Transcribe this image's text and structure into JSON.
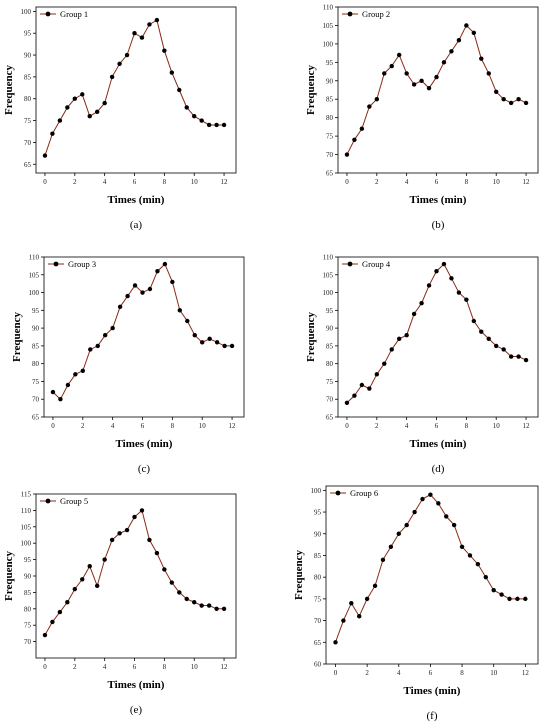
{
  "chart_data": [
    {
      "type": "line",
      "caption": "(a)",
      "xlabel": "Times  (min)",
      "ylabel": "Frequency",
      "xlim": [
        -0.6,
        12.8
      ],
      "ylim": [
        63,
        101
      ],
      "xticks": [
        0,
        2,
        4,
        6,
        8,
        10,
        12
      ],
      "yticks": [
        65,
        70,
        75,
        80,
        85,
        90,
        95,
        100
      ],
      "legend_position": "top-left",
      "series": [
        {
          "name": "Group 1",
          "x": [
            0,
            0.5,
            1,
            1.5,
            2,
            2.5,
            3,
            3.5,
            4,
            4.5,
            5,
            5.5,
            6,
            6.5,
            7,
            7.5,
            8,
            8.5,
            9,
            9.5,
            10,
            10.5,
            11,
            11.5,
            12
          ],
          "y": [
            67,
            72,
            75,
            78,
            80,
            81,
            76,
            77,
            79,
            85,
            88,
            90,
            95,
            94,
            97,
            98,
            91,
            86,
            82,
            78,
            76,
            75,
            74,
            74,
            74
          ]
        }
      ]
    },
    {
      "type": "line",
      "caption": "(b)",
      "xlabel": "Times  (min)",
      "ylabel": "Frequency",
      "xlim": [
        -0.6,
        12.8
      ],
      "ylim": [
        65,
        110
      ],
      "xticks": [
        0,
        2,
        4,
        6,
        8,
        10,
        12
      ],
      "yticks": [
        65,
        70,
        75,
        80,
        85,
        90,
        95,
        100,
        105,
        110
      ],
      "legend_position": "top-left",
      "series": [
        {
          "name": "Group 2",
          "x": [
            0,
            0.5,
            1,
            1.5,
            2,
            2.5,
            3,
            3.5,
            4,
            4.5,
            5,
            5.5,
            6,
            6.5,
            7,
            7.5,
            8,
            8.5,
            9,
            9.5,
            10,
            10.5,
            11,
            11.5,
            12
          ],
          "y": [
            70,
            74,
            77,
            83,
            85,
            92,
            94,
            97,
            92,
            89,
            90,
            88,
            91,
            95,
            98,
            101,
            105,
            103,
            96,
            92,
            87,
            85,
            84,
            85,
            84
          ]
        }
      ]
    },
    {
      "type": "line",
      "caption": "(c)",
      "xlabel": "Times  (min)",
      "ylabel": "Frequency",
      "xlim": [
        -0.6,
        12.8
      ],
      "ylim": [
        65,
        110
      ],
      "xticks": [
        0,
        2,
        4,
        6,
        8,
        10,
        12
      ],
      "yticks": [
        65,
        70,
        75,
        80,
        85,
        90,
        95,
        100,
        105,
        110
      ],
      "legend_position": "top-left",
      "series": [
        {
          "name": "Group 3",
          "x": [
            0,
            0.5,
            1,
            1.5,
            2,
            2.5,
            3,
            3.5,
            4,
            4.5,
            5,
            5.5,
            6,
            6.5,
            7,
            7.5,
            8,
            8.5,
            9,
            9.5,
            10,
            10.5,
            11,
            11.5,
            12
          ],
          "y": [
            72,
            70,
            74,
            77,
            78,
            84,
            85,
            88,
            90,
            96,
            99,
            102,
            100,
            101,
            106,
            108,
            103,
            95,
            92,
            88,
            86,
            87,
            86,
            85,
            85
          ]
        }
      ]
    },
    {
      "type": "line",
      "caption": "(d)",
      "xlabel": "Times  (min)",
      "ylabel": "Frequency",
      "xlim": [
        -0.6,
        12.8
      ],
      "ylim": [
        65,
        110
      ],
      "xticks": [
        0,
        2,
        4,
        6,
        8,
        10,
        12
      ],
      "yticks": [
        65,
        70,
        75,
        80,
        85,
        90,
        95,
        100,
        105,
        110
      ],
      "legend_position": "top-left",
      "series": [
        {
          "name": "Group 4",
          "x": [
            0,
            0.5,
            1,
            1.5,
            2,
            2.5,
            3,
            3.5,
            4,
            4.5,
            5,
            5.5,
            6,
            6.5,
            7,
            7.5,
            8,
            8.5,
            9,
            9.5,
            10,
            10.5,
            11,
            11.5,
            12
          ],
          "y": [
            69,
            71,
            74,
            73,
            77,
            80,
            84,
            87,
            88,
            94,
            97,
            102,
            106,
            108,
            104,
            100,
            98,
            92,
            89,
            87,
            85,
            84,
            82,
            82,
            81
          ]
        }
      ]
    },
    {
      "type": "line",
      "caption": "(e)",
      "xlabel": "Times  (min)",
      "ylabel": "Frequency",
      "xlim": [
        -0.6,
        12.8
      ],
      "ylim": [
        65,
        115
      ],
      "xticks": [
        0,
        2,
        4,
        6,
        8,
        10,
        12
      ],
      "yticks": [
        70,
        75,
        80,
        85,
        90,
        95,
        100,
        105,
        110,
        115
      ],
      "legend_position": "top-left",
      "series": [
        {
          "name": "Group 5",
          "x": [
            0,
            0.5,
            1,
            1.5,
            2,
            2.5,
            3,
            3.5,
            4,
            4.5,
            5,
            5.5,
            6,
            6.5,
            7,
            7.5,
            8,
            8.5,
            9,
            9.5,
            10,
            10.5,
            11,
            11.5,
            12
          ],
          "y": [
            72,
            76,
            79,
            82,
            86,
            89,
            93,
            87,
            95,
            101,
            103,
            104,
            108,
            110,
            101,
            97,
            92,
            88,
            85,
            83,
            82,
            81,
            81,
            80,
            80
          ]
        }
      ]
    },
    {
      "type": "line",
      "caption": "(f)",
      "xlabel": "Times  (min)",
      "ylabel": "Frequency",
      "xlim": [
        -0.6,
        12.8
      ],
      "ylim": [
        60,
        101
      ],
      "xticks": [
        0,
        2,
        4,
        6,
        8,
        10,
        12
      ],
      "yticks": [
        60,
        65,
        70,
        75,
        80,
        85,
        90,
        95,
        100
      ],
      "legend_position": "top-left",
      "series": [
        {
          "name": "Group 6",
          "x": [
            0,
            0.5,
            1,
            1.5,
            2,
            2.5,
            3,
            3.5,
            4,
            4.5,
            5,
            5.5,
            6,
            6.5,
            7,
            7.5,
            8,
            8.5,
            9,
            9.5,
            10,
            10.5,
            11,
            11.5,
            12
          ],
          "y": [
            65,
            70,
            74,
            71,
            75,
            78,
            84,
            87,
            90,
            92,
            95,
            98,
            99,
            97,
            94,
            92,
            87,
            85,
            83,
            80,
            77,
            76,
            75,
            75,
            75
          ]
        }
      ]
    }
  ],
  "colors": {
    "line": "#8b2a16",
    "marker": "#000000",
    "axis": "#000000",
    "text": "#000000"
  }
}
